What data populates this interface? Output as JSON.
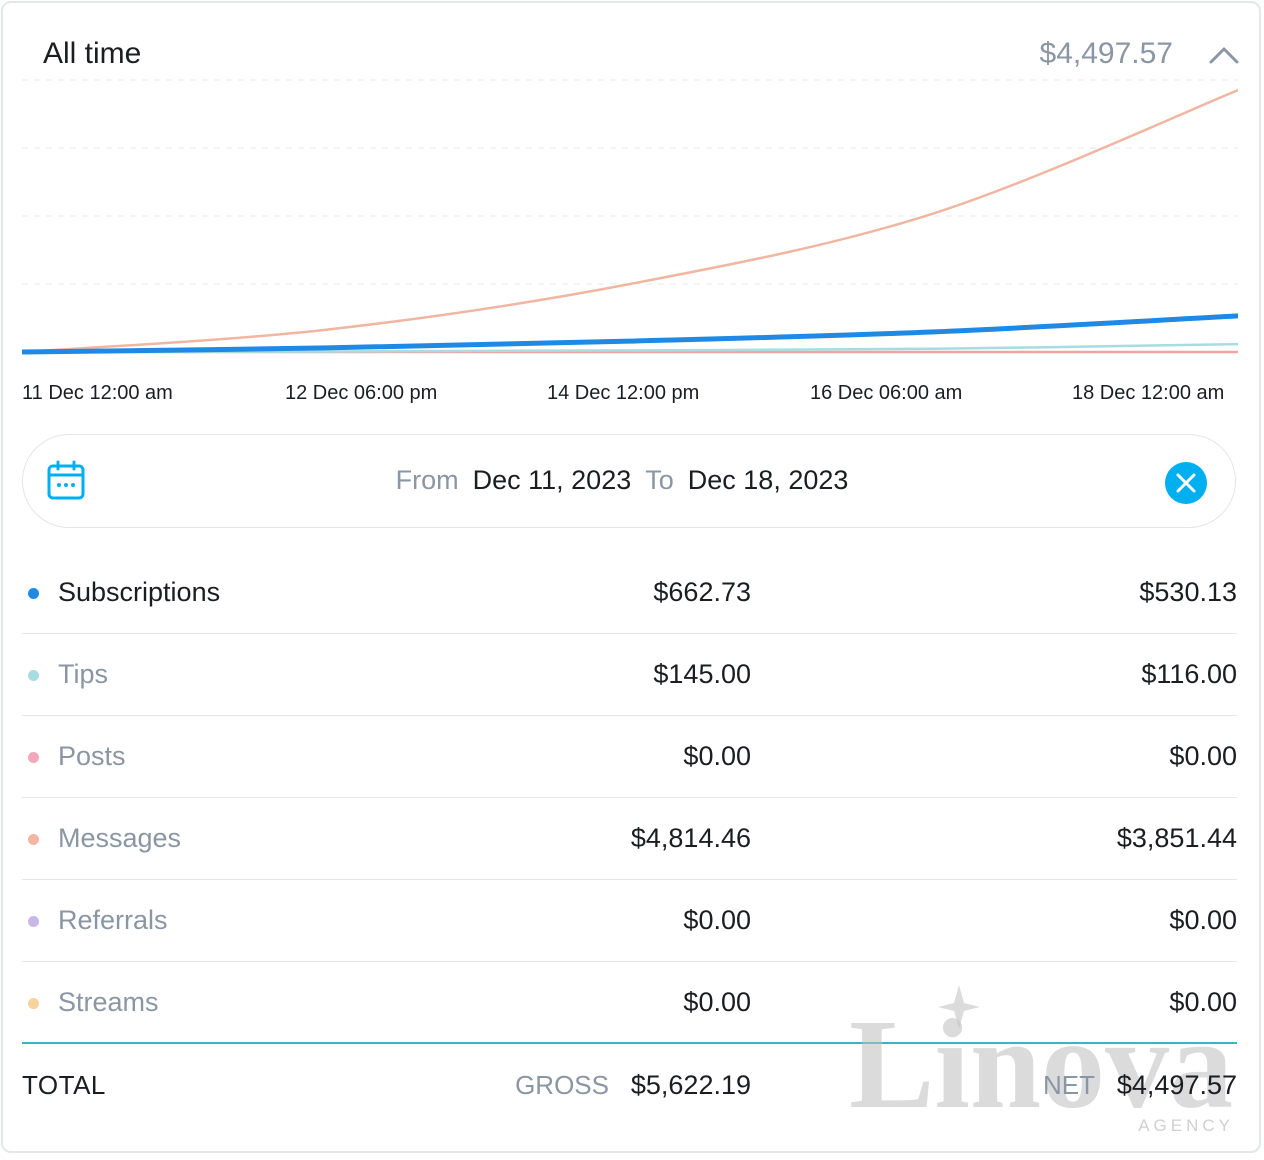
{
  "header": {
    "title": "All time",
    "amount": "$4,497.57"
  },
  "chart_data": {
    "type": "line",
    "x": [
      "11 Dec 12:00 am",
      "12 Dec 06:00 pm",
      "14 Dec 12:00 pm",
      "16 Dec 06:00 am",
      "18 Dec 12:00 am"
    ],
    "x_ticks": [
      "11 Dec 12:00 am",
      "12 Dec 06:00 pm",
      "14 Dec 12:00 pm",
      "16 Dec 06:00 am",
      "18 Dec 12:00 am"
    ],
    "grid": true,
    "series": [
      {
        "key": "messages",
        "color": "#f1b6a1",
        "values": [
          0,
          410,
          1250,
          2550,
          4814
        ]
      },
      {
        "key": "subscriptions",
        "color": "#1f8ae6",
        "values": [
          0,
          75,
          200,
          370,
          663
        ]
      },
      {
        "key": "tips",
        "color": "#a7dde2",
        "values": [
          0,
          10,
          30,
          60,
          145
        ]
      },
      {
        "key": "posts",
        "color": "#f4a3a3",
        "values": [
          0,
          0,
          0,
          0,
          0
        ]
      }
    ]
  },
  "date_range": {
    "from_label": "From",
    "from_value": "Dec 11, 2023",
    "to_label": "To",
    "to_value": "Dec 18, 2023"
  },
  "categories": [
    {
      "label": "Subscriptions",
      "gross": "$662.73",
      "net": "$530.13",
      "color": "#1f8ae6",
      "active": true
    },
    {
      "label": "Tips",
      "gross": "$145.00",
      "net": "$116.00",
      "color": "#a7dde2",
      "active": false
    },
    {
      "label": "Posts",
      "gross": "$0.00",
      "net": "$0.00",
      "color": "#f3a7bd",
      "active": false
    },
    {
      "label": "Messages",
      "gross": "$4,814.46",
      "net": "$3,851.44",
      "color": "#f4b6a3",
      "active": false
    },
    {
      "label": "Referrals",
      "gross": "$0.00",
      "net": "$0.00",
      "color": "#c9b7e6",
      "active": false
    },
    {
      "label": "Streams",
      "gross": "$0.00",
      "net": "$0.00",
      "color": "#f6d39a",
      "active": false
    }
  ],
  "total": {
    "label": "TOTAL",
    "gross_label": "GROSS",
    "gross": "$5,622.19",
    "net_label": "NET",
    "net": "$4,497.57"
  },
  "watermark": {
    "brand": "Linova",
    "tagline": "AGENCY"
  }
}
